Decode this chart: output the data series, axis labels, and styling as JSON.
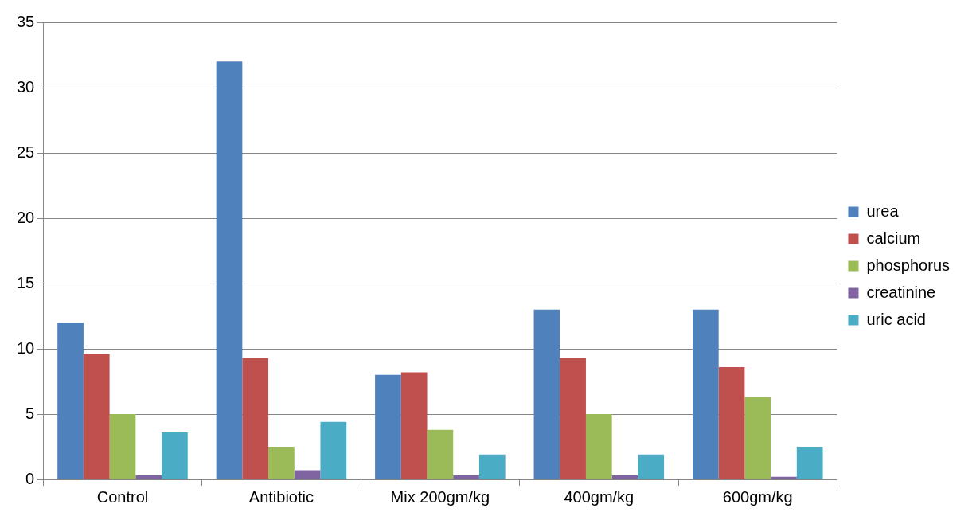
{
  "chart_data": {
    "type": "bar",
    "categories": [
      "Control",
      "Antibiotic",
      "Mix 200gm/kg",
      "400gm/kg",
      "600gm/kg"
    ],
    "series": [
      {
        "name": "urea",
        "color": "#4f81bd",
        "values": [
          12,
          32,
          8,
          13,
          13
        ]
      },
      {
        "name": "calcium",
        "color": "#c0504d",
        "values": [
          9.6,
          9.3,
          8.2,
          9.3,
          8.6
        ]
      },
      {
        "name": "phosphorus",
        "color": "#9bbb59",
        "values": [
          5,
          2.5,
          3.8,
          5,
          6.3
        ]
      },
      {
        "name": "creatinine",
        "color": "#8064a2",
        "values": [
          0.3,
          0.7,
          0.3,
          0.3,
          0.2
        ]
      },
      {
        "name": "uric acid",
        "color": "#4bacc6",
        "values": [
          3.6,
          4.4,
          1.9,
          1.9,
          2.5
        ]
      }
    ],
    "ylim": [
      0,
      35
    ],
    "yticks": [
      0,
      5,
      10,
      15,
      20,
      25,
      30,
      35
    ],
    "grid": "y",
    "legend": "right"
  }
}
